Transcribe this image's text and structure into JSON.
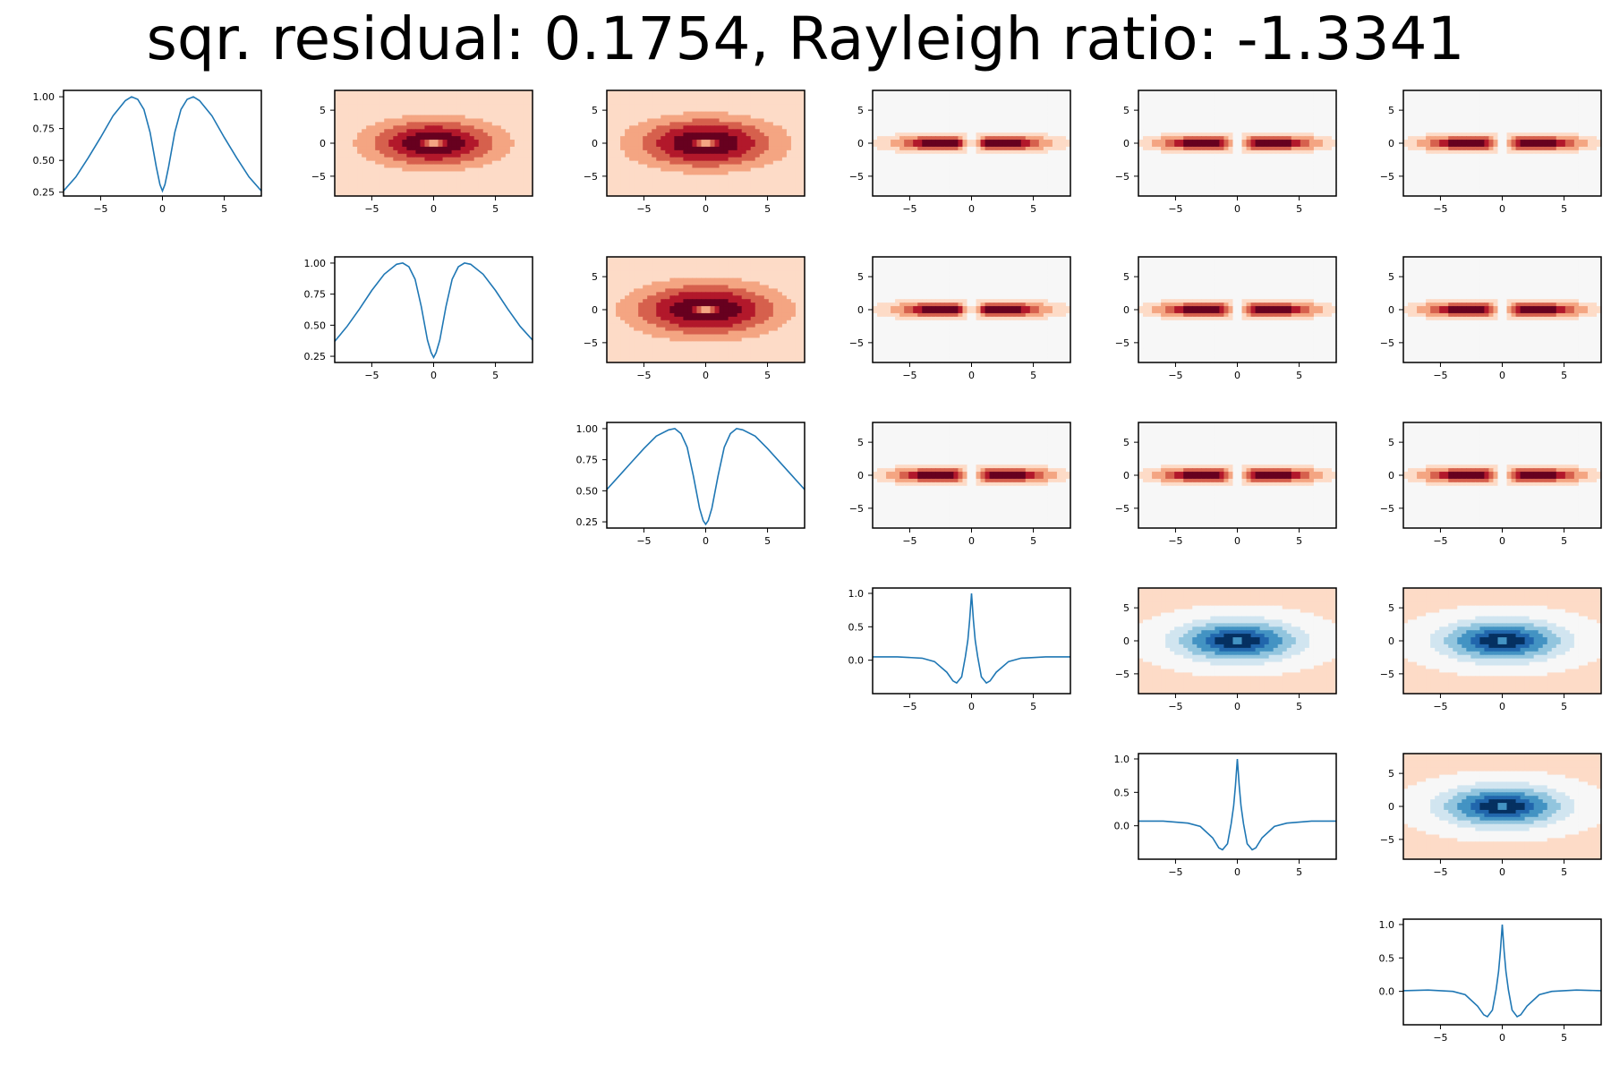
{
  "figure": {
    "title": "sqr. residual: 0.1754, Rayleigh ratio: -1.3341"
  },
  "colors": {
    "line": "#1f77b4",
    "background": "#ffffff",
    "contour_cmap": "RdBu_r",
    "reds": [
      "#f7f7f7",
      "#fddbc7",
      "#f4a582",
      "#d6604d",
      "#b2182b",
      "#67001f"
    ],
    "blues": [
      "#d1e5f0",
      "#92c5de",
      "#4393c3",
      "#2166ac",
      "#053061"
    ]
  },
  "chart_data": {
    "type": "grid",
    "rows": 6,
    "cols": 6,
    "layout": "upper-triangular",
    "x_ticks": [
      -5,
      0,
      5
    ],
    "x_tick_labels": [
      "−5",
      "0",
      "5"
    ],
    "y_ticks_contour": [
      5,
      0,
      -5
    ],
    "y_tick_labels_contour": [
      "5",
      "0",
      "−5"
    ],
    "xlim": [
      -8,
      8
    ],
    "ylim_contour": [
      -8,
      8
    ],
    "marginals": [
      {
        "type": "line",
        "row": 0,
        "col": 0,
        "ylim": [
          0.22,
          1.05
        ],
        "yticks": [
          1.0,
          0.75,
          0.5,
          0.25
        ],
        "ytick_labels": [
          "1.00",
          "0.75",
          "0.50",
          "0.25"
        ],
        "x": [
          -8,
          -7,
          -6,
          -5,
          -4,
          -3,
          -2.5,
          -2,
          -1.5,
          -1,
          -0.5,
          -0.2,
          0,
          0.2,
          0.5,
          1,
          1.5,
          2,
          2.5,
          3,
          4,
          5,
          6,
          7,
          8
        ],
        "y": [
          0.26,
          0.37,
          0.52,
          0.68,
          0.85,
          0.97,
          1.0,
          0.98,
          0.9,
          0.72,
          0.45,
          0.31,
          0.26,
          0.31,
          0.45,
          0.72,
          0.9,
          0.98,
          1.0,
          0.97,
          0.85,
          0.68,
          0.52,
          0.37,
          0.26
        ]
      },
      {
        "type": "line",
        "row": 1,
        "col": 1,
        "ylim": [
          0.2,
          1.05
        ],
        "yticks": [
          1.0,
          0.75,
          0.5,
          0.25
        ],
        "ytick_labels": [
          "1.00",
          "0.75",
          "0.50",
          "0.25"
        ],
        "x": [
          -8,
          -7,
          -6,
          -5,
          -4,
          -3,
          -2.5,
          -2,
          -1.5,
          -1,
          -0.5,
          -0.2,
          0,
          0.2,
          0.5,
          1,
          1.5,
          2,
          2.5,
          3,
          4,
          5,
          6,
          7,
          8
        ],
        "y": [
          0.37,
          0.49,
          0.63,
          0.78,
          0.91,
          0.99,
          1.0,
          0.97,
          0.87,
          0.65,
          0.38,
          0.28,
          0.24,
          0.28,
          0.38,
          0.65,
          0.87,
          0.97,
          1.0,
          0.99,
          0.91,
          0.78,
          0.63,
          0.49,
          0.38
        ]
      },
      {
        "type": "line",
        "row": 2,
        "col": 2,
        "ylim": [
          0.2,
          1.05
        ],
        "yticks": [
          1.0,
          0.75,
          0.5,
          0.25
        ],
        "ytick_labels": [
          "1.00",
          "0.75",
          "0.50",
          "0.25"
        ],
        "x": [
          -8,
          -7,
          -6,
          -5,
          -4,
          -3,
          -2.5,
          -2,
          -1.5,
          -1,
          -0.5,
          -0.2,
          0,
          0.2,
          0.5,
          1,
          1.5,
          2,
          2.5,
          3,
          4,
          5,
          6,
          7,
          8
        ],
        "y": [
          0.51,
          0.62,
          0.73,
          0.84,
          0.94,
          0.99,
          1.0,
          0.96,
          0.85,
          0.62,
          0.36,
          0.26,
          0.23,
          0.26,
          0.36,
          0.62,
          0.85,
          0.96,
          1.0,
          0.99,
          0.94,
          0.84,
          0.73,
          0.62,
          0.51
        ]
      },
      {
        "type": "line",
        "row": 3,
        "col": 3,
        "ylim": [
          -0.5,
          1.08
        ],
        "yticks": [
          1.0,
          0.5,
          0.0
        ],
        "ytick_labels": [
          "1.0",
          "0.5",
          "0.0"
        ],
        "x": [
          -8,
          -6,
          -4,
          -3,
          -2,
          -1.5,
          -1.2,
          -0.8,
          -0.5,
          -0.3,
          -0.15,
          0,
          0.15,
          0.3,
          0.5,
          0.8,
          1.2,
          1.5,
          2,
          3,
          4,
          6,
          8
        ],
        "y": [
          0.05,
          0.05,
          0.03,
          -0.02,
          -0.18,
          -0.31,
          -0.34,
          -0.25,
          0.05,
          0.3,
          0.6,
          1.0,
          0.6,
          0.3,
          0.05,
          -0.25,
          -0.34,
          -0.31,
          -0.18,
          -0.02,
          0.03,
          0.05,
          0.05
        ]
      },
      {
        "type": "line",
        "row": 4,
        "col": 4,
        "ylim": [
          -0.5,
          1.08
        ],
        "yticks": [
          1.0,
          0.5,
          0.0
        ],
        "ytick_labels": [
          "1.0",
          "0.5",
          "0.0"
        ],
        "x": [
          -8,
          -6,
          -4,
          -3,
          -2,
          -1.5,
          -1.2,
          -0.8,
          -0.5,
          -0.3,
          -0.15,
          0,
          0.15,
          0.3,
          0.5,
          0.8,
          1.2,
          1.5,
          2,
          3,
          4,
          6,
          8
        ],
        "y": [
          0.07,
          0.07,
          0.04,
          -0.01,
          -0.18,
          -0.33,
          -0.36,
          -0.27,
          0.03,
          0.3,
          0.6,
          1.0,
          0.6,
          0.3,
          0.03,
          -0.27,
          -0.36,
          -0.33,
          -0.18,
          -0.01,
          0.04,
          0.07,
          0.07
        ]
      },
      {
        "type": "line",
        "row": 5,
        "col": 5,
        "ylim": [
          -0.5,
          1.08
        ],
        "yticks": [
          1.0,
          0.5,
          0.0
        ],
        "ytick_labels": [
          "1.0",
          "0.5",
          "0.0"
        ],
        "x": [
          -8,
          -6,
          -4,
          -3,
          -2,
          -1.5,
          -1.2,
          -0.8,
          -0.5,
          -0.3,
          -0.15,
          0,
          0.15,
          0.3,
          0.5,
          0.8,
          1.2,
          1.5,
          2,
          3,
          4,
          6,
          8
        ],
        "y": [
          0.01,
          0.02,
          0.0,
          -0.05,
          -0.22,
          -0.35,
          -0.38,
          -0.28,
          0.02,
          0.3,
          0.6,
          1.0,
          0.6,
          0.3,
          0.02,
          -0.28,
          -0.38,
          -0.35,
          -0.22,
          -0.05,
          0.0,
          0.02,
          0.01
        ]
      }
    ],
    "contours": [
      {
        "type": "contour",
        "row": 0,
        "col": 1,
        "pattern": "rings",
        "scale": 11
      },
      {
        "type": "contour",
        "row": 0,
        "col": 2,
        "pattern": "rings",
        "scale": 13
      },
      {
        "type": "contour",
        "row": 0,
        "col": 3,
        "pattern": "lobes",
        "lobe_x": 2.8
      },
      {
        "type": "contour",
        "row": 0,
        "col": 4,
        "pattern": "lobes",
        "lobe_x": 3.0
      },
      {
        "type": "contour",
        "row": 0,
        "col": 5,
        "pattern": "lobes",
        "lobe_x": 3.0
      },
      {
        "type": "contour",
        "row": 1,
        "col": 2,
        "pattern": "rings",
        "scale": 14
      },
      {
        "type": "contour",
        "row": 1,
        "col": 3,
        "pattern": "lobes",
        "lobe_x": 2.8
      },
      {
        "type": "contour",
        "row": 1,
        "col": 4,
        "pattern": "lobes",
        "lobe_x": 3.0
      },
      {
        "type": "contour",
        "row": 1,
        "col": 5,
        "pattern": "lobes",
        "lobe_x": 3.0
      },
      {
        "type": "contour",
        "row": 2,
        "col": 3,
        "pattern": "lobes",
        "lobe_x": 3.0
      },
      {
        "type": "contour",
        "row": 2,
        "col": 4,
        "pattern": "lobes",
        "lobe_x": 3.0
      },
      {
        "type": "contour",
        "row": 2,
        "col": 5,
        "pattern": "lobes",
        "lobe_x": 3.0
      },
      {
        "type": "contour",
        "row": 3,
        "col": 4,
        "pattern": "well"
      },
      {
        "type": "contour",
        "row": 3,
        "col": 5,
        "pattern": "well"
      },
      {
        "type": "contour",
        "row": 4,
        "col": 5,
        "pattern": "well"
      }
    ]
  }
}
